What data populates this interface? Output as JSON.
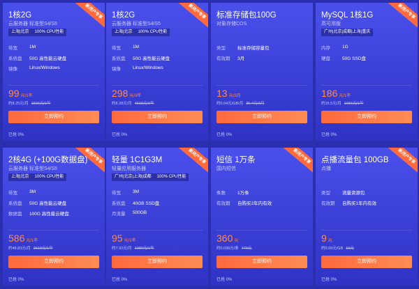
{
  "cards": [
    {
      "title": "1核2G",
      "subtitle": "云服务器 标准型S4/S5",
      "badge": "新用户专享",
      "tags": [
        "上海|北京",
        "100% CPU性能"
      ],
      "specs": [
        {
          "label": "带宽",
          "value": "1M"
        },
        {
          "label": "系统盘",
          "value": "50G 高性能云硬盘"
        },
        {
          "label": "镜像",
          "value": "Linux/Windows"
        }
      ],
      "price": "99",
      "price_unit": "元/1年",
      "per_month": "约8.25元/月",
      "original": "1506元/1年",
      "button": "立即预约",
      "sold": "已抢 0%"
    },
    {
      "title": "1核2G",
      "subtitle": "云服务器 标准型S4/S5",
      "badge": "新用户专享",
      "tags": [
        "上海|北京",
        "100% CPU性能"
      ],
      "specs": [
        {
          "label": "带宽",
          "value": "1M"
        },
        {
          "label": "系统盘",
          "value": "50G 高性能云硬盘"
        },
        {
          "label": "镜像",
          "value": "Linux/Windows"
        }
      ],
      "price": "298",
      "price_unit": "元/3年",
      "per_month": "约8.28元/月",
      "original": "4518元/3年",
      "button": "立即预约",
      "sold": "已抢 0%"
    },
    {
      "title": "标准存储包100G",
      "subtitle": "对象存储COS",
      "badge": "",
      "tags": [],
      "specs": [
        {
          "label": "类型",
          "value": "标准存储容量包"
        },
        {
          "label": "有效期",
          "value": "3月"
        }
      ],
      "price": "13",
      "price_unit": "元/3月",
      "per_month": "约0.04元/GB/月",
      "original": "35.4元/3月",
      "button": "立即预约",
      "sold": "已抢 0%"
    },
    {
      "title": "MySQL 1核1G",
      "subtitle": "高可用版",
      "badge": "新用户专享",
      "tags": [
        "广州|北京|成都|上海|重庆"
      ],
      "specs": [
        {
          "label": "内存",
          "value": "1G"
        },
        {
          "label": "硬盘",
          "value": "50G SSD盘"
        }
      ],
      "price": "186",
      "price_unit": "元/1年",
      "per_month": "约15.5元/月",
      "original": "1656元/1年",
      "button": "立即预约",
      "sold": "已抢 0%"
    },
    {
      "title": "2核4G (+100G数据盘)",
      "subtitle": "云服务器 标准型S4/S5",
      "badge": "新用户专享",
      "tags": [
        "上海|北京",
        "100% CPU性能"
      ],
      "specs": [
        {
          "label": "带宽",
          "value": "3M"
        },
        {
          "label": "系统盘",
          "value": "50G 高性能云硬盘"
        },
        {
          "label": "数据盘",
          "value": "100G 高性能云硬盘"
        }
      ],
      "price": "586",
      "price_unit": "元/1年",
      "per_month": "约48.83元/月",
      "original": "3618元/1年",
      "button": "立即预约",
      "sold": "已抢 0%"
    },
    {
      "title": "轻量 1C1G3M",
      "subtitle": "轻量应用服务器",
      "badge": "新用户专享",
      "tags": [
        "广州|北京|上海|成都",
        "100% CPU性能"
      ],
      "specs": [
        {
          "label": "带宽",
          "value": "3M"
        },
        {
          "label": "系统盘",
          "value": "40GB SSD盘"
        },
        {
          "label": "月流量",
          "value": "500GB"
        }
      ],
      "price": "95",
      "price_unit": "元/1年",
      "per_month": "约7.92元/月",
      "original": "1080元/1年",
      "button": "立即预约",
      "sold": "已抢 0%"
    },
    {
      "title": "短信 1万条",
      "subtitle": "国内短信",
      "badge": "新用户专享",
      "tags": [],
      "specs": [
        {
          "label": "条数",
          "value": "1万条"
        },
        {
          "label": "有效期",
          "value": "自购买2年内有效"
        }
      ],
      "price": "360",
      "price_unit": "元",
      "per_month": "约0.036元/条",
      "original": "470元",
      "button": "立即预约",
      "sold": "已抢 0%"
    },
    {
      "title": "点播流量包 100GB",
      "subtitle": "点播",
      "badge": "新用户专享",
      "tags": [],
      "specs": [
        {
          "label": "类型",
          "value": "流量资源包"
        },
        {
          "label": "有效期",
          "value": "自购买1年内有效"
        }
      ],
      "price": "9",
      "price_unit": "元",
      "per_month": "约0.09元/GB",
      "original": "19元",
      "button": "立即预约",
      "sold": "已抢 0%"
    }
  ]
}
